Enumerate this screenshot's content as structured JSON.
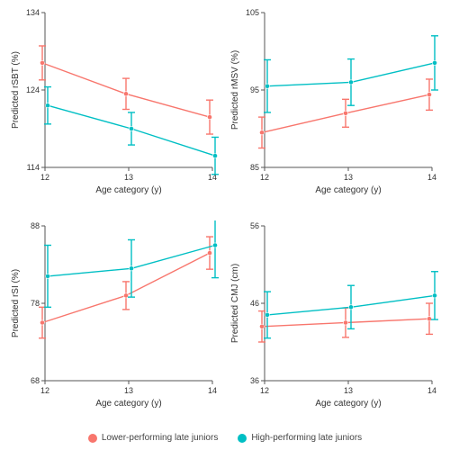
{
  "colors": {
    "lower": "#F8766D",
    "higher": "#00BFC4",
    "axis": "#555555",
    "tick": "#cccccc",
    "bg": "#ffffff"
  },
  "legend": {
    "lower": "Lower-performing late juniors",
    "higher": "High-performing late juniors"
  },
  "xlabel": "Age category (y)",
  "xticks": [
    12,
    13,
    14
  ],
  "marker_r": 2.6,
  "cap_w": 4,
  "line_w": 1.4,
  "panels": [
    {
      "id": "p1",
      "ylabel": "Predicted rSBT (%)",
      "ylim": [
        114,
        134
      ],
      "yticks": [
        114,
        124,
        134
      ],
      "series": {
        "lower": {
          "x": [
            12,
            13,
            14
          ],
          "y": [
            127.5,
            123.5,
            120.5
          ],
          "err": [
            2.2,
            2.0,
            2.2
          ]
        },
        "higher": {
          "x": [
            12,
            13,
            14
          ],
          "y": [
            122.0,
            119.0,
            115.5
          ],
          "err": [
            2.4,
            2.1,
            2.4
          ]
        }
      }
    },
    {
      "id": "p2",
      "ylabel": "Predicted rMSV (%)",
      "ylim": [
        85,
        105
      ],
      "yticks": [
        85,
        95,
        105
      ],
      "series": {
        "lower": {
          "x": [
            12,
            13,
            14
          ],
          "y": [
            89.5,
            92.0,
            94.4
          ],
          "err": [
            2.0,
            1.8,
            2.0
          ]
        },
        "higher": {
          "x": [
            12,
            13,
            14
          ],
          "y": [
            95.5,
            96.0,
            98.5
          ],
          "err": [
            3.4,
            3.0,
            3.5
          ]
        }
      }
    },
    {
      "id": "p3",
      "ylabel": "Predicted rSI (%)",
      "ylim": [
        68,
        88
      ],
      "yticks": [
        68,
        78,
        88
      ],
      "series": {
        "lower": {
          "x": [
            12,
            13,
            14
          ],
          "y": [
            75.5,
            79.0,
            84.5
          ],
          "err": [
            2.0,
            1.8,
            2.1
          ]
        },
        "higher": {
          "x": [
            12,
            13,
            14
          ],
          "y": [
            81.5,
            82.5,
            85.5
          ],
          "err": [
            4.0,
            3.7,
            4.2
          ]
        }
      }
    },
    {
      "id": "p4",
      "ylabel": "Predicted CMJ (cm)",
      "ylim": [
        36,
        56
      ],
      "yticks": [
        36,
        46,
        56
      ],
      "series": {
        "lower": {
          "x": [
            12,
            13,
            14
          ],
          "y": [
            43.0,
            43.5,
            44.0
          ],
          "err": [
            2.0,
            1.9,
            2.0
          ]
        },
        "higher": {
          "x": [
            12,
            13,
            14
          ],
          "y": [
            44.5,
            45.5,
            47.0
          ],
          "err": [
            3.0,
            2.8,
            3.1
          ]
        }
      }
    }
  ]
}
